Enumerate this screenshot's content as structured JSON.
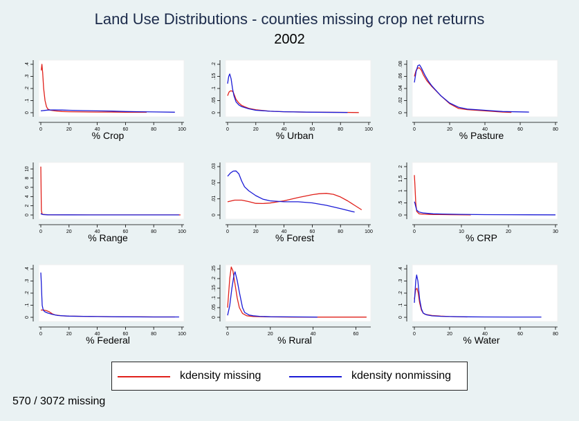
{
  "title": "Land Use Distributions - counties missing crop net returns",
  "subtitle": "2002",
  "note": "570 / 3072 missing",
  "legend": {
    "missing": {
      "label": "kdensity missing",
      "color": "#e0201a"
    },
    "nonmissing": {
      "label": "kdensity nonmissing",
      "color": "#1a1ad6"
    }
  },
  "chart_data": [
    {
      "type": "line",
      "xlabel": "% Crop",
      "xticks": [
        0,
        20,
        40,
        60,
        80,
        100
      ],
      "yticks": [
        0,
        0.1,
        0.2,
        0.3,
        0.4
      ],
      "ytick_labels": [
        "0",
        ".1",
        ".2",
        ".3",
        ".4"
      ],
      "xlim": [
        0,
        100
      ],
      "ylim": [
        0,
        0.4
      ],
      "series": [
        {
          "name": "kdensity missing",
          "x": [
            0.3,
            0.8,
            1.3,
            2,
            3,
            4,
            5,
            7,
            10,
            15,
            20,
            30,
            40,
            50,
            60,
            75
          ],
          "y": [
            0.35,
            0.4,
            0.33,
            0.2,
            0.1,
            0.05,
            0.03,
            0.02,
            0.015,
            0.01,
            0.008,
            0.006,
            0.005,
            0.005,
            0.004,
            0.004
          ]
        },
        {
          "name": "kdensity nonmissing",
          "x": [
            0,
            5,
            10,
            15,
            20,
            30,
            40,
            50,
            60,
            70,
            80,
            95
          ],
          "y": [
            0.015,
            0.022,
            0.023,
            0.022,
            0.02,
            0.017,
            0.015,
            0.013,
            0.01,
            0.008,
            0.006,
            0.004
          ]
        }
      ]
    },
    {
      "type": "line",
      "xlabel": "% Urban",
      "xticks": [
        0,
        20,
        40,
        60,
        80,
        100
      ],
      "yticks": [
        0,
        0.05,
        0.1,
        0.15,
        0.2
      ],
      "ytick_labels": [
        "0",
        ".05",
        ".1",
        ".15",
        ".2"
      ],
      "xlim": [
        0,
        100
      ],
      "ylim": [
        0,
        0.2
      ],
      "series": [
        {
          "name": "kdensity missing",
          "x": [
            0,
            1,
            2,
            3,
            4,
            5,
            6,
            8,
            10,
            12,
            15,
            20,
            30,
            40,
            60,
            80,
            93
          ],
          "y": [
            0.07,
            0.085,
            0.09,
            0.09,
            0.085,
            0.07,
            0.055,
            0.04,
            0.03,
            0.025,
            0.018,
            0.012,
            0.006,
            0.004,
            0.002,
            0.0015,
            0.0005
          ]
        },
        {
          "name": "kdensity nonmissing",
          "x": [
            0,
            0.8,
            1.5,
            2.5,
            3.5,
            4.5,
            6,
            8,
            10,
            15,
            20,
            30,
            40,
            60,
            85
          ],
          "y": [
            0.12,
            0.15,
            0.16,
            0.14,
            0.1,
            0.07,
            0.045,
            0.032,
            0.025,
            0.016,
            0.01,
            0.006,
            0.004,
            0.002,
            0.001
          ]
        }
      ]
    },
    {
      "type": "line",
      "xlabel": "% Pasture",
      "xticks": [
        0,
        20,
        40,
        60,
        80
      ],
      "yticks": [
        0,
        0.02,
        0.04,
        0.06,
        0.08
      ],
      "ytick_labels": [
        "0",
        ".02",
        ".04",
        ".06",
        ".08"
      ],
      "xlim": [
        0,
        80
      ],
      "ylim": [
        0,
        0.08
      ],
      "series": [
        {
          "name": "kdensity missing",
          "x": [
            0,
            1,
            2,
            3,
            4,
            5,
            7,
            10,
            15,
            20,
            25,
            30,
            40,
            50,
            55
          ],
          "y": [
            0.06,
            0.07,
            0.074,
            0.074,
            0.07,
            0.063,
            0.053,
            0.043,
            0.028,
            0.015,
            0.007,
            0.005,
            0.003,
            0.001,
            0.0005
          ]
        },
        {
          "name": "kdensity nonmissing",
          "x": [
            0,
            1,
            2,
            3,
            4,
            6,
            8,
            10,
            15,
            20,
            25,
            30,
            35,
            40,
            50,
            65
          ],
          "y": [
            0.05,
            0.068,
            0.078,
            0.079,
            0.074,
            0.062,
            0.052,
            0.044,
            0.028,
            0.016,
            0.009,
            0.006,
            0.005,
            0.004,
            0.002,
            0.001
          ]
        }
      ]
    },
    {
      "type": "line",
      "xlabel": "% Range",
      "xticks": [
        0,
        20,
        40,
        60,
        80,
        100
      ],
      "yticks": [
        0,
        2,
        4,
        6,
        8,
        10
      ],
      "ytick_labels": [
        "0",
        "2",
        "4",
        "6",
        "8",
        "10"
      ],
      "xlim": [
        0,
        100
      ],
      "ylim": [
        0,
        10.5
      ],
      "series": [
        {
          "name": "kdensity missing",
          "x": [
            0,
            0.15,
            0.4,
            1,
            5,
            20,
            50,
            80,
            99
          ],
          "y": [
            10.5,
            7,
            1,
            0.15,
            0.05,
            0.03,
            0.02,
            0.02,
            0.02
          ]
        },
        {
          "name": "kdensity nonmissing",
          "x": [
            0,
            0.5,
            2,
            5,
            20,
            50,
            80,
            98
          ],
          "y": [
            0.35,
            0.2,
            0.08,
            0.05,
            0.03,
            0.02,
            0.02,
            0.02
          ]
        }
      ]
    },
    {
      "type": "line",
      "xlabel": "% Forest",
      "xticks": [
        0,
        20,
        40,
        60,
        80,
        100
      ],
      "yticks": [
        0,
        0.01,
        0.02,
        0.03
      ],
      "ytick_labels": [
        "0",
        ".01",
        ".02",
        ".03"
      ],
      "xlim": [
        0,
        100
      ],
      "ylim": [
        0,
        0.03
      ],
      "series": [
        {
          "name": "kdensity missing",
          "x": [
            0,
            5,
            10,
            15,
            20,
            25,
            30,
            40,
            50,
            60,
            65,
            70,
            75,
            80,
            85,
            90,
            95
          ],
          "y": [
            0.0082,
            0.0092,
            0.0092,
            0.0083,
            0.0072,
            0.0071,
            0.0074,
            0.0088,
            0.0108,
            0.0126,
            0.0132,
            0.0134,
            0.0128,
            0.0112,
            0.0088,
            0.006,
            0.0032
          ]
        },
        {
          "name": "kdensity nonmissing",
          "x": [
            0,
            2,
            4,
            6,
            8,
            10,
            12,
            15,
            20,
            25,
            30,
            40,
            50,
            60,
            70,
            80,
            90
          ],
          "y": [
            0.024,
            0.026,
            0.0272,
            0.0273,
            0.0255,
            0.021,
            0.0175,
            0.015,
            0.012,
            0.0098,
            0.0088,
            0.0082,
            0.0082,
            0.0075,
            0.006,
            0.004,
            0.0018
          ]
        }
      ]
    },
    {
      "type": "line",
      "xlabel": "% CRP",
      "xticks": [
        0,
        10,
        20,
        30
      ],
      "yticks": [
        0,
        0.5,
        1,
        1.5,
        2
      ],
      "ytick_labels": [
        "0",
        ".5",
        "1",
        "1.5",
        "2"
      ],
      "xlim": [
        0,
        30
      ],
      "ylim": [
        0,
        2
      ],
      "series": [
        {
          "name": "kdensity missing",
          "x": [
            0,
            0.1,
            0.3,
            0.5,
            1,
            2,
            4,
            8,
            12
          ],
          "y": [
            1.65,
            1.3,
            0.5,
            0.15,
            0.05,
            0.03,
            0.02,
            0.01,
            0.005
          ]
        },
        {
          "name": "kdensity nonmissing",
          "x": [
            0,
            0.1,
            0.3,
            0.5,
            1,
            2,
            4,
            6,
            10,
            15,
            20,
            30
          ],
          "y": [
            0.55,
            0.5,
            0.35,
            0.2,
            0.12,
            0.08,
            0.05,
            0.04,
            0.025,
            0.015,
            0.01,
            0.005
          ]
        }
      ]
    },
    {
      "type": "line",
      "xlabel": "% Federal",
      "xticks": [
        0,
        20,
        40,
        60,
        80,
        100
      ],
      "yticks": [
        0,
        0.1,
        0.2,
        0.3,
        0.4
      ],
      "ytick_labels": [
        "0",
        ".1",
        ".2",
        ".3",
        ".4"
      ],
      "xlim": [
        0,
        100
      ],
      "ylim": [
        0,
        0.4
      ],
      "series": [
        {
          "name": "kdensity missing",
          "x": [
            0,
            2,
            4,
            6,
            8,
            10,
            15,
            20,
            30,
            40,
            50,
            60,
            70,
            80,
            95
          ],
          "y": [
            0.06,
            0.06,
            0.055,
            0.045,
            0.03,
            0.02,
            0.012,
            0.01,
            0.008,
            0.006,
            0.005,
            0.004,
            0.004,
            0.003,
            0.003
          ]
        },
        {
          "name": "kdensity nonmissing",
          "x": [
            0,
            0.3,
            0.7,
            1,
            1.5,
            2,
            3,
            5,
            8,
            12,
            20,
            40,
            60,
            80,
            98
          ],
          "y": [
            0.37,
            0.3,
            0.18,
            0.1,
            0.07,
            0.055,
            0.045,
            0.035,
            0.025,
            0.015,
            0.01,
            0.006,
            0.004,
            0.003,
            0.003
          ]
        }
      ]
    },
    {
      "type": "line",
      "xlabel": "% Rural",
      "xticks": [
        0,
        20,
        40,
        60
      ],
      "yticks": [
        0,
        0.05,
        0.1,
        0.15,
        0.2,
        0.25
      ],
      "ytick_labels": [
        "0",
        ".05",
        ".1",
        ".15",
        ".2",
        ".25"
      ],
      "xlim": [
        0,
        66
      ],
      "ylim": [
        0,
        0.25
      ],
      "series": [
        {
          "name": "kdensity missing",
          "x": [
            0,
            1,
            1.7,
            2.5,
            3.5,
            4.5,
            5.5,
            7,
            9,
            12,
            20,
            30,
            45,
            65
          ],
          "y": [
            0.05,
            0.2,
            0.26,
            0.24,
            0.17,
            0.1,
            0.05,
            0.02,
            0.008,
            0.004,
            0.002,
            0.001,
            0.001,
            0.001
          ]
        },
        {
          "name": "kdensity nonmissing",
          "x": [
            0,
            1,
            2,
            3,
            3.5,
            4.5,
            5.5,
            7,
            8,
            10,
            12,
            15,
            20,
            30,
            42
          ],
          "y": [
            0.01,
            0.06,
            0.15,
            0.22,
            0.235,
            0.19,
            0.13,
            0.05,
            0.025,
            0.012,
            0.008,
            0.005,
            0.003,
            0.002,
            0.001
          ]
        }
      ]
    },
    {
      "type": "line",
      "xlabel": "% Water",
      "xticks": [
        0,
        20,
        40,
        60,
        80
      ],
      "yticks": [
        0,
        0.1,
        0.2,
        0.3,
        0.4
      ],
      "ytick_labels": [
        "0",
        ".1",
        ".2",
        ".3",
        ".4"
      ],
      "xlim": [
        0,
        80
      ],
      "ylim": [
        0,
        0.4
      ],
      "series": [
        {
          "name": "kdensity missing",
          "x": [
            0,
            0.8,
            1.5,
            2.2,
            3,
            4,
            5,
            6,
            8,
            10,
            15,
            20,
            30
          ],
          "y": [
            0.15,
            0.23,
            0.24,
            0.2,
            0.12,
            0.06,
            0.035,
            0.025,
            0.02,
            0.015,
            0.01,
            0.006,
            0.003
          ]
        },
        {
          "name": "kdensity nonmissing",
          "x": [
            0,
            0.8,
            1.3,
            2,
            3,
            4,
            5,
            7,
            10,
            15,
            20,
            30,
            40,
            55,
            72
          ],
          "y": [
            0.12,
            0.3,
            0.35,
            0.3,
            0.15,
            0.07,
            0.035,
            0.02,
            0.012,
            0.008,
            0.006,
            0.004,
            0.003,
            0.002,
            0.002
          ]
        }
      ]
    }
  ]
}
